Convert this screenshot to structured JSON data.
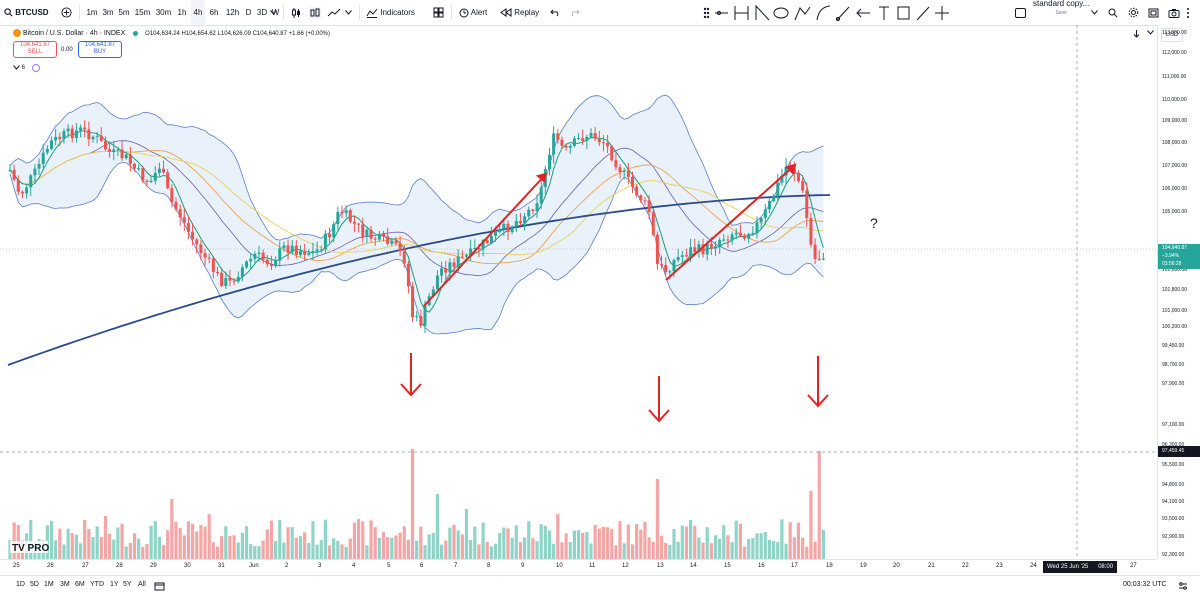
{
  "toolbar": {
    "symbol": "BTCUSD",
    "timeframes": [
      "1m",
      "3m",
      "5m",
      "15m",
      "30m",
      "1h",
      "4h",
      "6h",
      "12h",
      "D",
      "3D",
      "W"
    ],
    "active_timeframe": "4h",
    "indicators_label": "Indicators",
    "alert_label": "Alert",
    "replay_label": "Replay",
    "layout_name": "standard copy...",
    "layout_status": "Save"
  },
  "legend": {
    "title": "Bitcoin / U.S. Dollar · 4h · INDEX",
    "ohlc": "O104,634.24 H104,654.62 L104,626.09 C104,640.87 +1.66 (+0.00%)",
    "sell_price": "104,641.87",
    "sell_label": "SELL",
    "spread": "0.00",
    "buy_price": "104,641.87",
    "buy_label": "BUY",
    "indicator_count": "6"
  },
  "currency": "USD",
  "price_axis": {
    "labels": [
      "113,000.00",
      "112,000.00",
      "111,000.00",
      "110,000.00",
      "109,000.00",
      "108,000.00",
      "107,000.00",
      "106,000.00",
      "105,000.00",
      "104,640.87",
      "103,400.00",
      "102,600.00",
      "101,800.00",
      "101,000.00",
      "100,200.00",
      "99,450.00",
      "98,700.00",
      "97,900.00",
      "97,459.45",
      "97,100.00",
      "96,300.00",
      "95,500.00",
      "94,800.00",
      "94,100.00",
      "93,500.00",
      "92,900.00",
      "92,300.00"
    ],
    "last_price": "104,640.87",
    "last_change": "−3.94%",
    "countdown": "03:56:28",
    "crosshair_price": "97,459.45"
  },
  "time_axis": {
    "labels": [
      "25",
      "26",
      "27",
      "28",
      "29",
      "30",
      "31",
      "Jun",
      "2",
      "3",
      "4",
      "5",
      "6",
      "7",
      "8",
      "9",
      "10",
      "11",
      "12",
      "13",
      "14",
      "15",
      "16",
      "17",
      "18",
      "19",
      "20",
      "21",
      "22",
      "23",
      "24",
      "26",
      "27"
    ],
    "crosshair_date": "Wed 25 Jun '25",
    "crosshair_time": "08:00"
  },
  "annotations": {
    "question_mark": "?"
  },
  "watermark": "TV PRO",
  "bottombar": {
    "ranges": [
      "1D",
      "5D",
      "1M",
      "3M",
      "6M",
      "YTD",
      "1Y",
      "5Y",
      "All"
    ],
    "clock": "00:03:32 UTC"
  },
  "colors": {
    "up": "#26a69a",
    "down": "#ef5350",
    "volume_up": "#8fd4c8",
    "volume_down": "#f4a6a6",
    "bb_fill": "#dbeaf6",
    "bb_line": "#5b7fc7",
    "ma_long": "#2b4a8b",
    "arrow": "#e02424"
  }
}
